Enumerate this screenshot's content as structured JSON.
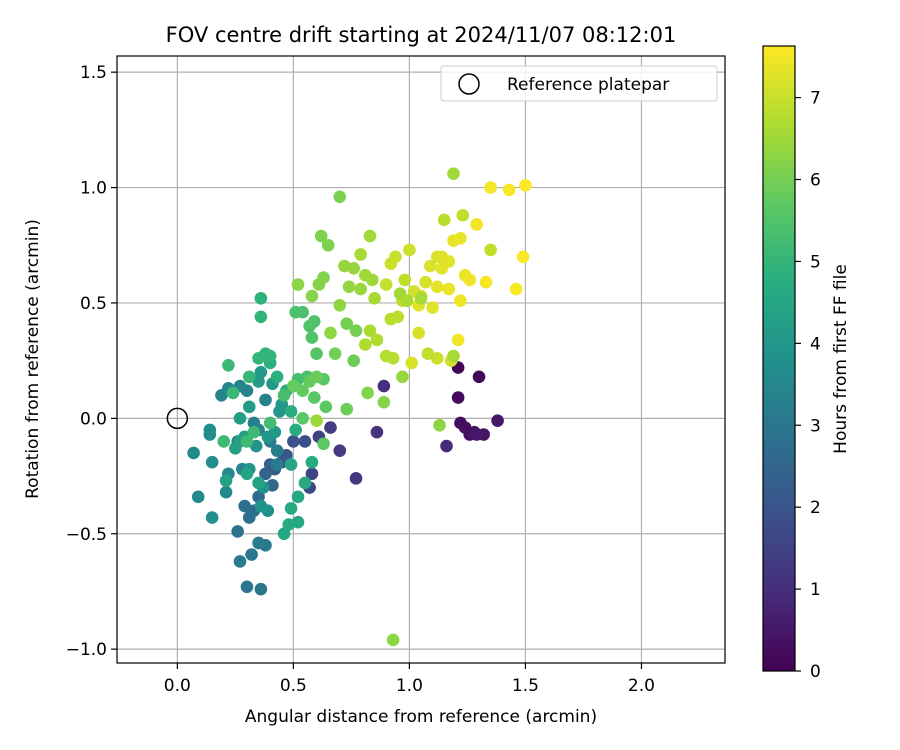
{
  "chart_data": {
    "type": "scatter",
    "title": "FOV centre drift starting at 2024/11/07 08:12:01",
    "xlabel": "Angular distance from reference (arcmin)",
    "ylabel": "Rotation from reference (arcmin)",
    "xlim": [
      -0.26,
      2.36
    ],
    "ylim": [
      -1.06,
      1.57
    ],
    "xticks": [
      0.0,
      0.5,
      1.0,
      1.5,
      2.0
    ],
    "xtick_labels": [
      "0.0",
      "0.5",
      "1.0",
      "1.5",
      "2.0"
    ],
    "yticks": [
      -1.0,
      -0.5,
      0.0,
      0.5,
      1.0,
      1.5
    ],
    "ytick_labels": [
      "−1.0",
      "−0.5",
      "0.0",
      "0.5",
      "1.0",
      "1.5"
    ],
    "grid": true,
    "legend": {
      "position": "top-right",
      "entries": [
        {
          "label": "Reference platepar",
          "marker": "open-circle"
        }
      ]
    },
    "reference_point": {
      "x": 0.0,
      "y": 0.0
    },
    "colorbar": {
      "label": "Hours from first FF file",
      "min": 0,
      "max": 7.63,
      "ticks": [
        0,
        1,
        2,
        3,
        4,
        5,
        6,
        7
      ],
      "tick_labels": [
        "0",
        "1",
        "2",
        "3",
        "4",
        "5",
        "6",
        "7"
      ],
      "colormap": "viridis"
    },
    "points": [
      {
        "x": 1.21,
        "y": 0.22,
        "t": 0.1
      },
      {
        "x": 1.3,
        "y": 0.18,
        "t": 0.15
      },
      {
        "x": 1.21,
        "y": 0.09,
        "t": 0.2
      },
      {
        "x": 1.22,
        "y": -0.02,
        "t": 0.25
      },
      {
        "x": 1.24,
        "y": -0.04,
        "t": 0.3
      },
      {
        "x": 1.26,
        "y": -0.07,
        "t": 0.35
      },
      {
        "x": 1.28,
        "y": -0.06,
        "t": 0.4
      },
      {
        "x": 1.32,
        "y": -0.07,
        "t": 0.45
      },
      {
        "x": 1.38,
        "y": -0.01,
        "t": 0.5
      },
      {
        "x": 1.29,
        "y": -0.07,
        "t": 0.55
      },
      {
        "x": 1.16,
        "y": -0.12,
        "t": 0.9
      },
      {
        "x": 0.89,
        "y": 0.14,
        "t": 1.0
      },
      {
        "x": 0.86,
        "y": -0.06,
        "t": 1.1
      },
      {
        "x": 0.77,
        "y": -0.26,
        "t": 1.2
      },
      {
        "x": 0.7,
        "y": -0.14,
        "t": 1.3
      },
      {
        "x": 0.66,
        "y": -0.04,
        "t": 1.4
      },
      {
        "x": 0.61,
        "y": -0.08,
        "t": 1.5
      },
      {
        "x": 0.58,
        "y": -0.24,
        "t": 1.6
      },
      {
        "x": 0.57,
        "y": -0.3,
        "t": 1.7
      },
      {
        "x": 0.55,
        "y": -0.1,
        "t": 1.8
      },
      {
        "x": 0.5,
        "y": -0.1,
        "t": 1.9
      },
      {
        "x": 0.47,
        "y": -0.16,
        "t": 2.0
      },
      {
        "x": 0.45,
        "y": -0.19,
        "t": 2.1
      },
      {
        "x": 0.42,
        "y": -0.22,
        "t": 2.2
      },
      {
        "x": 0.4,
        "y": -0.2,
        "t": 2.3
      },
      {
        "x": 0.38,
        "y": -0.24,
        "t": 2.4
      },
      {
        "x": 0.41,
        "y": -0.29,
        "t": 2.5
      },
      {
        "x": 0.35,
        "y": -0.34,
        "t": 2.6
      },
      {
        "x": 0.33,
        "y": -0.4,
        "t": 2.7
      },
      {
        "x": 0.31,
        "y": -0.43,
        "t": 2.8
      },
      {
        "x": 0.29,
        "y": -0.38,
        "t": 2.85
      },
      {
        "x": 0.26,
        "y": -0.49,
        "t": 2.9
      },
      {
        "x": 0.3,
        "y": -0.73,
        "t": 2.95
      },
      {
        "x": 0.36,
        "y": -0.74,
        "t": 3.0
      },
      {
        "x": 0.32,
        "y": -0.59,
        "t": 3.0
      },
      {
        "x": 0.38,
        "y": -0.55,
        "t": 3.05
      },
      {
        "x": 0.35,
        "y": -0.54,
        "t": 3.1
      },
      {
        "x": 0.27,
        "y": -0.62,
        "t": 3.1
      },
      {
        "x": 0.43,
        "y": -0.2,
        "t": 3.15
      },
      {
        "x": 0.43,
        "y": -0.14,
        "t": 3.2
      },
      {
        "x": 0.4,
        "y": -0.1,
        "t": 3.2
      },
      {
        "x": 0.35,
        "y": -0.05,
        "t": 3.25
      },
      {
        "x": 0.33,
        "y": -0.02,
        "t": 3.3
      },
      {
        "x": 0.38,
        "y": 0.08,
        "t": 3.3
      },
      {
        "x": 0.3,
        "y": 0.12,
        "t": 3.35
      },
      {
        "x": 0.27,
        "y": 0.14,
        "t": 3.4
      },
      {
        "x": 0.19,
        "y": 0.1,
        "t": 3.4
      },
      {
        "x": 0.22,
        "y": 0.13,
        "t": 3.45
      },
      {
        "x": 0.26,
        "y": -0.1,
        "t": 3.5
      },
      {
        "x": 0.28,
        "y": -0.22,
        "t": 3.5
      },
      {
        "x": 0.22,
        "y": -0.24,
        "t": 3.55
      },
      {
        "x": 0.21,
        "y": -0.32,
        "t": 3.6
      },
      {
        "x": 0.09,
        "y": -0.34,
        "t": 3.6
      },
      {
        "x": 0.07,
        "y": -0.15,
        "t": 3.6
      },
      {
        "x": 0.15,
        "y": -0.19,
        "t": 3.65
      },
      {
        "x": 0.14,
        "y": -0.07,
        "t": 3.7
      },
      {
        "x": 0.14,
        "y": -0.05,
        "t": 3.7
      },
      {
        "x": 0.15,
        "y": -0.43,
        "t": 3.75
      },
      {
        "x": 0.36,
        "y": -0.38,
        "t": 3.8
      },
      {
        "x": 0.39,
        "y": -0.4,
        "t": 3.8
      },
      {
        "x": 0.37,
        "y": -0.3,
        "t": 3.85
      },
      {
        "x": 0.31,
        "y": -0.22,
        "t": 3.9
      },
      {
        "x": 0.34,
        "y": -0.12,
        "t": 3.9
      },
      {
        "x": 0.39,
        "y": -0.08,
        "t": 3.95
      },
      {
        "x": 0.42,
        "y": -0.06,
        "t": 4.0
      },
      {
        "x": 0.44,
        "y": 0.03,
        "t": 4.0
      },
      {
        "x": 0.45,
        "y": 0.06,
        "t": 4.05
      },
      {
        "x": 0.41,
        "y": 0.15,
        "t": 4.1
      },
      {
        "x": 0.36,
        "y": 0.2,
        "t": 4.1
      },
      {
        "x": 0.35,
        "y": 0.16,
        "t": 4.15
      },
      {
        "x": 0.31,
        "y": 0.05,
        "t": 4.2
      },
      {
        "x": 0.27,
        "y": 0.0,
        "t": 4.2
      },
      {
        "x": 0.29,
        "y": -0.08,
        "t": 4.25
      },
      {
        "x": 0.25,
        "y": -0.13,
        "t": 4.3
      },
      {
        "x": 0.27,
        "y": -0.1,
        "t": 4.3
      },
      {
        "x": 0.21,
        "y": -0.27,
        "t": 4.35
      },
      {
        "x": 0.3,
        "y": -0.24,
        "t": 4.4
      },
      {
        "x": 0.35,
        "y": -0.28,
        "t": 4.4
      },
      {
        "x": 0.49,
        "y": -0.2,
        "t": 4.45
      },
      {
        "x": 0.52,
        "y": -0.34,
        "t": 4.5
      },
      {
        "x": 0.52,
        "y": -0.45,
        "t": 4.5
      },
      {
        "x": 0.46,
        "y": -0.5,
        "t": 4.55
      },
      {
        "x": 0.48,
        "y": -0.46,
        "t": 4.6
      },
      {
        "x": 0.49,
        "y": -0.39,
        "t": 4.6
      },
      {
        "x": 0.55,
        "y": -0.28,
        "t": 4.65
      },
      {
        "x": 0.58,
        "y": -0.19,
        "t": 4.7
      },
      {
        "x": 0.51,
        "y": -0.05,
        "t": 4.7
      },
      {
        "x": 0.49,
        "y": 0.03,
        "t": 4.75
      },
      {
        "x": 0.47,
        "y": 0.12,
        "t": 4.8
      },
      {
        "x": 0.43,
        "y": 0.18,
        "t": 4.8
      },
      {
        "x": 0.4,
        "y": 0.24,
        "t": 4.85
      },
      {
        "x": 0.38,
        "y": 0.28,
        "t": 4.9
      },
      {
        "x": 0.36,
        "y": 0.52,
        "t": 4.9
      },
      {
        "x": 0.36,
        "y": 0.44,
        "t": 4.95
      },
      {
        "x": 0.4,
        "y": 0.27,
        "t": 5.0
      },
      {
        "x": 0.35,
        "y": 0.26,
        "t": 5.0
      },
      {
        "x": 0.31,
        "y": 0.18,
        "t": 5.05
      },
      {
        "x": 0.22,
        "y": 0.23,
        "t": 5.1
      },
      {
        "x": 0.24,
        "y": 0.11,
        "t": 5.1
      },
      {
        "x": 0.2,
        "y": -0.1,
        "t": 5.15
      },
      {
        "x": 0.3,
        "y": -0.1,
        "t": 5.2
      },
      {
        "x": 0.33,
        "y": -0.06,
        "t": 5.2
      },
      {
        "x": 0.4,
        "y": -0.02,
        "t": 5.25
      },
      {
        "x": 0.46,
        "y": 0.1,
        "t": 5.3
      },
      {
        "x": 0.52,
        "y": 0.17,
        "t": 5.3
      },
      {
        "x": 0.56,
        "y": 0.18,
        "t": 5.35
      },
      {
        "x": 0.51,
        "y": 0.46,
        "t": 5.4
      },
      {
        "x": 0.54,
        "y": 0.46,
        "t": 5.4
      },
      {
        "x": 0.59,
        "y": 0.42,
        "t": 5.45
      },
      {
        "x": 0.57,
        "y": 0.4,
        "t": 5.5
      },
      {
        "x": 0.58,
        "y": 0.35,
        "t": 5.5
      },
      {
        "x": 0.6,
        "y": 0.28,
        "t": 5.55
      },
      {
        "x": 0.63,
        "y": 0.17,
        "t": 5.6
      },
      {
        "x": 0.59,
        "y": 0.09,
        "t": 5.6
      },
      {
        "x": 0.54,
        "y": 0.0,
        "t": 5.65
      },
      {
        "x": 0.64,
        "y": 0.05,
        "t": 5.7
      },
      {
        "x": 0.63,
        "y": -0.11,
        "t": 5.7
      },
      {
        "x": 0.54,
        "y": 0.12,
        "t": 5.75
      },
      {
        "x": 0.5,
        "y": 0.14,
        "t": 5.8
      },
      {
        "x": 0.57,
        "y": 0.16,
        "t": 5.8
      },
      {
        "x": 0.6,
        "y": 0.18,
        "t": 5.85
      },
      {
        "x": 0.73,
        "y": 0.04,
        "t": 5.9
      },
      {
        "x": 0.76,
        "y": 0.25,
        "t": 5.9
      },
      {
        "x": 0.68,
        "y": 0.28,
        "t": 5.95
      },
      {
        "x": 0.73,
        "y": 0.41,
        "t": 6.0
      },
      {
        "x": 0.77,
        "y": 0.38,
        "t": 6.0
      },
      {
        "x": 0.7,
        "y": 0.96,
        "t": 6.05
      },
      {
        "x": 0.62,
        "y": 0.79,
        "t": 6.1
      },
      {
        "x": 0.65,
        "y": 0.75,
        "t": 6.1
      },
      {
        "x": 0.63,
        "y": 0.61,
        "t": 6.15
      },
      {
        "x": 0.61,
        "y": 0.58,
        "t": 6.2
      },
      {
        "x": 0.58,
        "y": 0.53,
        "t": 6.2
      },
      {
        "x": 0.52,
        "y": 0.58,
        "t": 6.25
      },
      {
        "x": 0.66,
        "y": 0.37,
        "t": 6.3
      },
      {
        "x": 0.7,
        "y": 0.49,
        "t": 6.3
      },
      {
        "x": 0.74,
        "y": 0.57,
        "t": 6.35
      },
      {
        "x": 0.72,
        "y": 0.66,
        "t": 6.4
      },
      {
        "x": 0.76,
        "y": 0.65,
        "t": 6.4
      },
      {
        "x": 0.79,
        "y": 0.56,
        "t": 6.45
      },
      {
        "x": 0.81,
        "y": 0.62,
        "t": 6.5
      },
      {
        "x": 0.84,
        "y": 0.6,
        "t": 6.5
      },
      {
        "x": 0.83,
        "y": 0.79,
        "t": 6.55
      },
      {
        "x": 0.79,
        "y": 0.71,
        "t": 6.6
      },
      {
        "x": 0.85,
        "y": 0.52,
        "t": 6.6
      },
      {
        "x": 0.83,
        "y": 0.38,
        "t": 6.65
      },
      {
        "x": 0.81,
        "y": 0.32,
        "t": 6.7
      },
      {
        "x": 0.86,
        "y": 0.34,
        "t": 6.7
      },
      {
        "x": 0.9,
        "y": 0.27,
        "t": 6.75
      },
      {
        "x": 0.93,
        "y": 0.26,
        "t": 6.8
      },
      {
        "x": 0.92,
        "y": 0.43,
        "t": 6.8
      },
      {
        "x": 0.95,
        "y": 0.44,
        "t": 6.85
      },
      {
        "x": 0.97,
        "y": 0.51,
        "t": 6.9
      },
      {
        "x": 0.98,
        "y": 0.6,
        "t": 6.9
      },
      {
        "x": 0.9,
        "y": 0.58,
        "t": 6.95
      },
      {
        "x": 0.92,
        "y": 0.67,
        "t": 7.0
      },
      {
        "x": 0.94,
        "y": 0.7,
        "t": 7.0
      },
      {
        "x": 1.0,
        "y": 0.73,
        "t": 7.05
      },
      {
        "x": 1.02,
        "y": 0.55,
        "t": 7.1
      },
      {
        "x": 1.05,
        "y": 0.53,
        "t": 7.1
      },
      {
        "x": 1.07,
        "y": 0.59,
        "t": 7.15
      },
      {
        "x": 1.09,
        "y": 0.66,
        "t": 7.2
      },
      {
        "x": 1.12,
        "y": 0.7,
        "t": 7.2
      },
      {
        "x": 1.14,
        "y": 0.7,
        "t": 7.25
      },
      {
        "x": 1.14,
        "y": 0.65,
        "t": 7.3
      },
      {
        "x": 1.17,
        "y": 0.68,
        "t": 7.3
      },
      {
        "x": 1.19,
        "y": 0.77,
        "t": 7.35
      },
      {
        "x": 1.22,
        "y": 0.78,
        "t": 7.4
      },
      {
        "x": 1.24,
        "y": 0.62,
        "t": 7.4
      },
      {
        "x": 1.26,
        "y": 0.6,
        "t": 7.45
      },
      {
        "x": 1.29,
        "y": 0.84,
        "t": 7.5
      },
      {
        "x": 1.35,
        "y": 1.0,
        "t": 7.5
      },
      {
        "x": 1.43,
        "y": 0.99,
        "t": 7.55
      },
      {
        "x": 1.5,
        "y": 1.01,
        "t": 7.6
      },
      {
        "x": 1.49,
        "y": 0.7,
        "t": 7.6
      },
      {
        "x": 1.46,
        "y": 0.56,
        "t": 7.6
      },
      {
        "x": 1.33,
        "y": 0.59,
        "t": 7.55
      },
      {
        "x": 1.21,
        "y": 0.34,
        "t": 7.5
      },
      {
        "x": 1.22,
        "y": 0.51,
        "t": 7.45
      },
      {
        "x": 1.17,
        "y": 0.56,
        "t": 7.4
      },
      {
        "x": 1.12,
        "y": 0.57,
        "t": 7.35
      },
      {
        "x": 1.1,
        "y": 0.48,
        "t": 7.3
      },
      {
        "x": 1.04,
        "y": 0.49,
        "t": 7.25
      },
      {
        "x": 1.01,
        "y": 0.24,
        "t": 7.2
      },
      {
        "x": 1.04,
        "y": 0.37,
        "t": 7.15
      },
      {
        "x": 1.18,
        "y": 0.25,
        "t": 7.1
      },
      {
        "x": 1.12,
        "y": 0.26,
        "t": 7.0
      },
      {
        "x": 1.08,
        "y": 0.28,
        "t": 6.9
      },
      {
        "x": 1.19,
        "y": 1.06,
        "t": 6.5
      },
      {
        "x": 1.15,
        "y": 0.86,
        "t": 6.8
      },
      {
        "x": 1.23,
        "y": 0.88,
        "t": 6.9
      },
      {
        "x": 1.35,
        "y": 0.73,
        "t": 6.9
      },
      {
        "x": 1.13,
        "y": -0.03,
        "t": 6.3
      },
      {
        "x": 0.97,
        "y": 0.18,
        "t": 6.4
      },
      {
        "x": 0.93,
        "y": -0.96,
        "t": 6.3
      },
      {
        "x": 0.89,
        "y": 0.07,
        "t": 6.2
      },
      {
        "x": 0.82,
        "y": 0.11,
        "t": 6.15
      },
      {
        "x": 0.96,
        "y": 0.54,
        "t": 6.55
      },
      {
        "x": 1.05,
        "y": 0.52,
        "t": 6.6
      },
      {
        "x": 0.99,
        "y": 0.51,
        "t": 6.65
      },
      {
        "x": 0.6,
        "y": -0.01,
        "t": 6.5
      },
      {
        "x": 1.19,
        "y": 0.27,
        "t": 6.6
      }
    ]
  }
}
